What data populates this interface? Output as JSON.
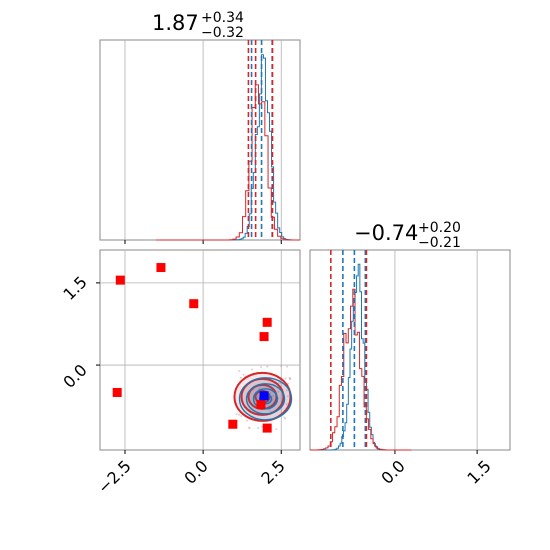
{
  "chart_data": {
    "type": "corner",
    "colors": {
      "blue": "#1f77b4",
      "red": "#d62728",
      "marker": "#ff0000",
      "truth": "#0000ff"
    },
    "grid": true,
    "param1": {
      "title": {
        "value": "1.87",
        "plus": "+0.34",
        "minus": "−0.32"
      },
      "xlim": [
        -3.3,
        3.1
      ],
      "ticks": [
        -2.5,
        0.0,
        2.5
      ],
      "tick_labels": [
        "−2.5",
        "0.0",
        "2.5"
      ],
      "quantiles_blue": [
        1.55,
        1.87,
        2.21
      ],
      "quantiles_red": [
        1.45,
        1.68,
        2.22
      ],
      "hist_blue_peak": 1.93,
      "hist_red_peak": 1.78
    },
    "param2": {
      "title": {
        "value": "−0.74",
        "plus": "+0.20",
        "minus": "−0.21"
      },
      "xlim": [
        -1.55,
        2.1
      ],
      "ticks": [
        0.0,
        1.5
      ],
      "tick_labels": [
        "0.0",
        "1.5"
      ],
      "quantiles_blue": [
        -0.95,
        -0.74,
        -0.54
      ],
      "quantiles_red": [
        -1.17,
        -0.52
      ],
      "hist_blue_peak": -0.68,
      "hist_red_peak": -0.78,
      "ylim": [
        -1.55,
        2.1
      ],
      "y_tick_labels": [
        "0.0",
        "1.5"
      ]
    },
    "square_markers": [
      {
        "x": -2.65,
        "y": 1.55
      },
      {
        "x": -1.35,
        "y": 1.78
      },
      {
        "x": -0.3,
        "y": 1.12
      },
      {
        "x": 2.05,
        "y": 0.78
      },
      {
        "x": 1.95,
        "y": 0.52
      },
      {
        "x": -2.75,
        "y": -0.5
      },
      {
        "x": 0.95,
        "y": -1.08
      },
      {
        "x": 1.85,
        "y": -0.72
      },
      {
        "x": 2.05,
        "y": -1.15
      }
    ],
    "truth_marker": {
      "x": 1.95,
      "y": -0.56
    }
  }
}
